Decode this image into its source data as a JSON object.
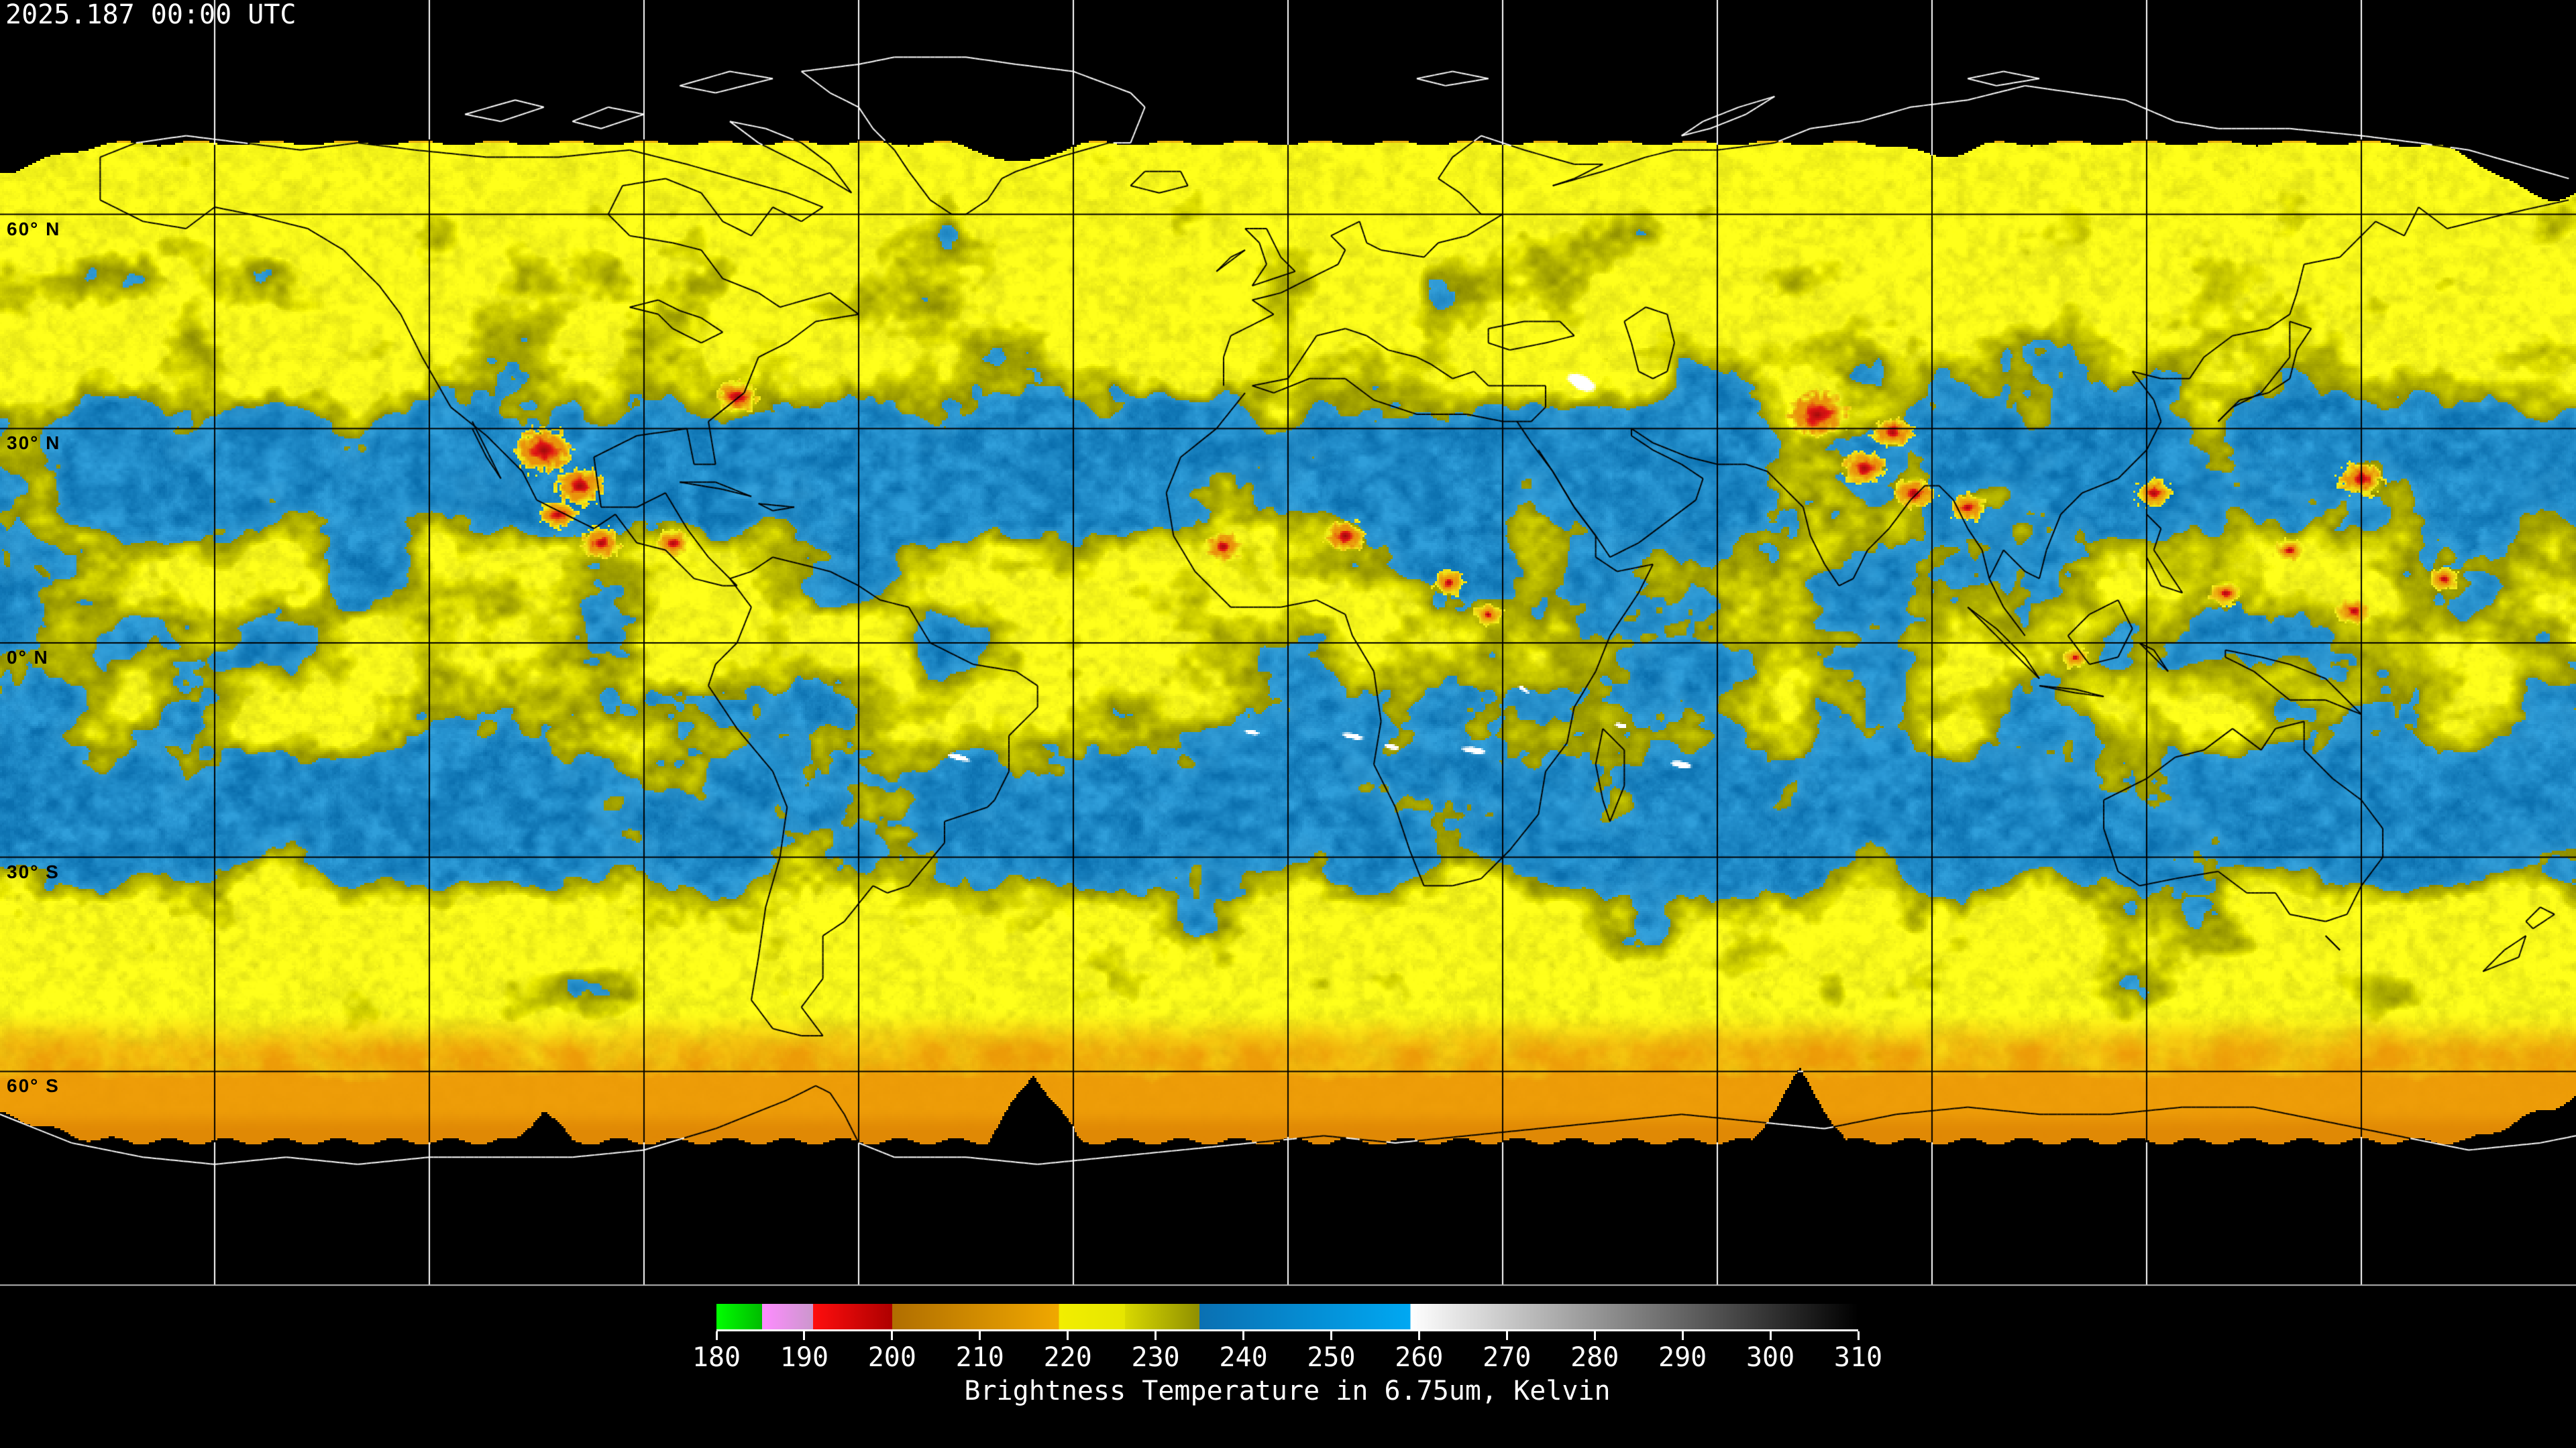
{
  "header": {
    "timestamp": "2025.187 00:00 UTC"
  },
  "map": {
    "projection": "equirectangular global composite",
    "latitude_labels": [
      {
        "text": "60° N",
        "lat": 60
      },
      {
        "text": "30° N",
        "lat": 30
      },
      {
        "text": "0° N",
        "lat": 0
      },
      {
        "text": "30° S",
        "lat": -30
      },
      {
        "text": "60° S",
        "lat": -60
      }
    ],
    "grid": {
      "lon_interval_deg": 30,
      "lat_interval_deg": 30,
      "line_color_over_data": "#000000",
      "line_color_over_void": "#ffffff",
      "bottom_border_color": "#b4b4b4"
    },
    "background_color": "#000000",
    "palette": {
      "dry_blue_dark": "#0a6fae",
      "dry_blue_bright": "#2f9eda",
      "moist_blue": "#3fa6dc",
      "cloud_olive_dark": "#8f8f00",
      "cloud_olive": "#aeae00",
      "cloud_yellow": "#d6d600",
      "cloud_yellow_bright": "#f2f218",
      "conv_orange": "#e9930b",
      "conv_red": "#e11414",
      "conv_red_dark": "#9c0a0a",
      "polar_orange": "#ec9406",
      "polar_orange_deep": "#dd8404",
      "rim_orange": "#e07800",
      "warm_white": "#ffffff",
      "coast_over_data": "#000000",
      "coast_over_void": "#ffffff"
    }
  },
  "colorbar": {
    "title": "Brightness Temperature in 6.75um, Kelvin",
    "units": "Kelvin",
    "min": 180,
    "max": 310,
    "ticks": [
      180,
      190,
      200,
      210,
      220,
      230,
      240,
      250,
      260,
      270,
      280,
      290,
      300,
      310
    ],
    "segments": [
      {
        "from": 180,
        "to": 185.2,
        "start": "#00ff00",
        "end": "#00bb00"
      },
      {
        "from": 185.2,
        "to": 191,
        "start": "#ff8cff",
        "end": "#cb97cd"
      },
      {
        "from": 191,
        "to": 200,
        "start": "#ff0e0e",
        "end": "#ae0000"
      },
      {
        "from": 200,
        "to": 219,
        "start": "#b06e00",
        "end": "#f0a800"
      },
      {
        "from": 219,
        "to": 226.5,
        "start": "#f2ee00",
        "end": "#e6e600"
      },
      {
        "from": 226.5,
        "to": 235,
        "start": "#d9d900",
        "end": "#8f8f00"
      },
      {
        "from": 235,
        "to": 259,
        "start": "#0a70b2",
        "end": "#00a8f2"
      },
      {
        "from": 259,
        "to": 310,
        "start": "#ffffff",
        "end": "#000000"
      }
    ]
  }
}
